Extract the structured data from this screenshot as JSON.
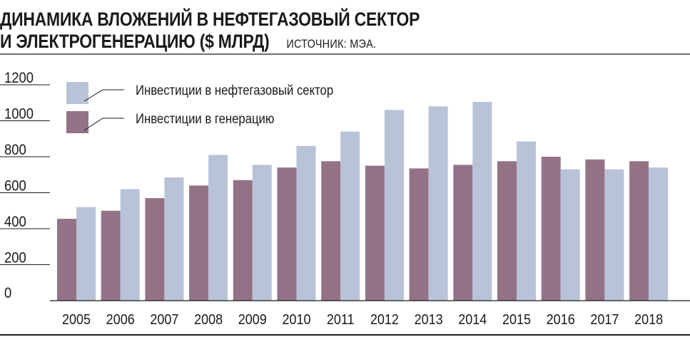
{
  "header": {
    "title_line1": "ДИНАМИКА ВЛОЖЕНИЙ В НЕФТЕГАЗОВЫЙ СЕКТОР",
    "title_line2": "И ЭЛЕКТРОГЕНЕРАЦИЮ ($ МЛРД)",
    "source": "ИСТОЧНИК: МЭА."
  },
  "colors": {
    "generation": "#947286",
    "oil_gas": "#b8c3d7",
    "axis": "#1a1a1a",
    "grid": "#1a1a1a"
  },
  "chart_data": {
    "type": "bar",
    "title": "ДИНАМИКА ВЛОЖЕНИЙ В НЕФТЕГАЗОВЫЙ СЕКТОР И ЭЛЕКТРОГЕНЕРАЦИЮ ($ МЛРД)",
    "categories": [
      "2005",
      "2006",
      "2007",
      "2008",
      "2009",
      "2010",
      "2011",
      "2012",
      "2013",
      "2014",
      "2015",
      "2016",
      "2017",
      "2018"
    ],
    "series": [
      {
        "name": "Инвестиции в генерацию",
        "color": "#947286",
        "values": [
          455,
          500,
          570,
          640,
          670,
          740,
          775,
          750,
          735,
          755,
          775,
          800,
          785,
          775
        ]
      },
      {
        "name": "Инвестиции в нефтегазовый сектор",
        "color": "#b8c3d7",
        "values": [
          520,
          620,
          685,
          810,
          755,
          860,
          940,
          1060,
          1080,
          1105,
          885,
          730,
          730,
          740
        ]
      }
    ],
    "yticks": [
      0,
      200,
      400,
      600,
      800,
      1000,
      1200
    ],
    "ylim": [
      0,
      1200
    ],
    "grid": true,
    "legend": [
      {
        "label": "Инвестиции в нефтегазовый сектор",
        "series": 1
      },
      {
        "label": "Инвестиции в генерацию",
        "series": 0
      }
    ],
    "legend_position": "top-left",
    "xlabel": "",
    "ylabel": ""
  }
}
